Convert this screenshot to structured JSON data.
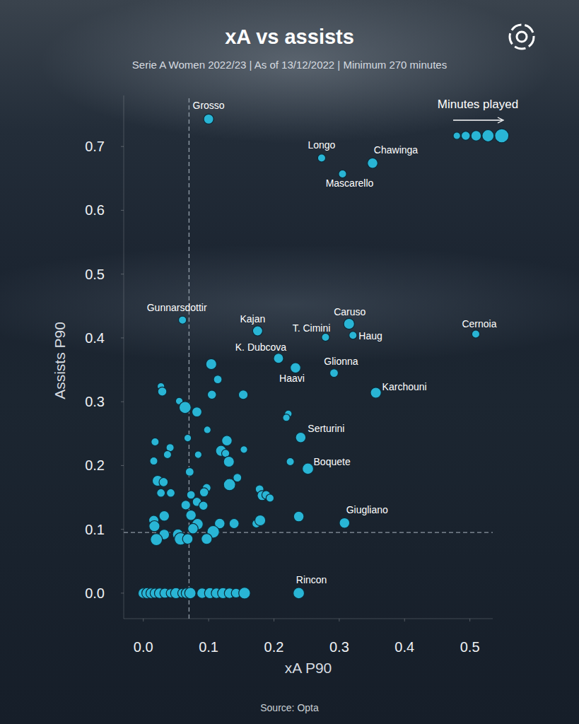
{
  "chart_data": {
    "type": "scatter",
    "title": "xA vs assists",
    "subtitle": "Serie A Women 2022/23 | As of 13/12/2022 | Minimum 270 minutes",
    "x_label": "xA P90",
    "y_label": "Assists P90",
    "source": "Source: Opta",
    "color": "#29b5d5",
    "marker": "circle",
    "grid": false,
    "xlim": [
      -0.03,
      0.535
    ],
    "ylim": [
      -0.04,
      0.78
    ],
    "xticks": [
      {
        "value": 0,
        "label": "0.0"
      },
      0.1,
      0.2,
      0.3,
      0.4,
      0.5
    ],
    "yticks": [
      {
        "value": 0,
        "label": "0.0"
      },
      0.1,
      0.2,
      0.3,
      0.4,
      0.5,
      0.6,
      0.7
    ],
    "reference_lines": {
      "x": 0.07,
      "y": 0.095
    },
    "size_label": "Minutes played",
    "size_legend": [
      300,
      450,
      600,
      800,
      1100
    ],
    "x": [
      0.1,
      0.273,
      0.351,
      0.305,
      0.06,
      0.175,
      0.315,
      0.279,
      0.321,
      0.509,
      0.207,
      0.292,
      0.233,
      0.356,
      0.241,
      0.252,
      0.308,
      0.238,
      0.104,
      0.114,
      0.027,
      0.029,
      0.055,
      0.064,
      0.082,
      0.105,
      0.153,
      0.222,
      0.219,
      0.098,
      0.018,
      0.041,
      0.068,
      0.128,
      0.154,
      0.037,
      0.084,
      0.119,
      0.126,
      0.016,
      0.131,
      0.071,
      0.225,
      0.144,
      0.132,
      0.022,
      0.031,
      0.097,
      0.093,
      0.027,
      0.042,
      0.073,
      0.178,
      0.182,
      0.188,
      0.194,
      0.082,
      0.065,
      0.092,
      0.032,
      0.073,
      0.016,
      0.117,
      0.139,
      0.173,
      0.179,
      0.238,
      0.083,
      0.017,
      0.076,
      0.107,
      0.053,
      0.032,
      0.02,
      0.057,
      0.068,
      0.097,
      0,
      0.006,
      0.012,
      0.018,
      0.025,
      0.033,
      0.042,
      0.05,
      0.06,
      0.066,
      0.072,
      0.09,
      0.102,
      0.112,
      0.122,
      0.132,
      0.142,
      0.155
    ],
    "y": [
      0.743,
      0.682,
      0.674,
      0.657,
      0.428,
      0.411,
      0.422,
      0.401,
      0.404,
      0.406,
      0.368,
      0.345,
      0.353,
      0.314,
      0.244,
      0.195,
      0.11,
      0,
      0.359,
      0.335,
      0.324,
      0.316,
      0.301,
      0.291,
      0.284,
      0.311,
      0.311,
      0.281,
      0.275,
      0.256,
      0.237,
      0.228,
      0.243,
      0.239,
      0.225,
      0.217,
      0.217,
      0.223,
      0.219,
      0.207,
      0.206,
      0.19,
      0.206,
      0.181,
      0.17,
      0.176,
      0.174,
      0.165,
      0.158,
      0.157,
      0.157,
      0.154,
      0.163,
      0.153,
      0.154,
      0.149,
      0.143,
      0.138,
      0.137,
      0.121,
      0.122,
      0.114,
      0.109,
      0.109,
      0.109,
      0.114,
      0.12,
      0.108,
      0.105,
      0.101,
      0.096,
      0.092,
      0.092,
      0.084,
      0.085,
      0.085,
      0.085,
      0,
      0,
      0,
      0,
      0,
      0,
      0,
      0,
      0,
      0,
      0,
      0,
      0,
      0,
      0,
      0,
      0,
      0
    ],
    "size": [
      550,
      350,
      600,
      350,
      350,
      550,
      650,
      350,
      350,
      350,
      550,
      400,
      600,
      650,
      600,
      700,
      600,
      700,
      650,
      400,
      300,
      450,
      300,
      800,
      550,
      450,
      500,
      300,
      300,
      300,
      350,
      350,
      300,
      600,
      300,
      350,
      300,
      650,
      350,
      350,
      650,
      400,
      350,
      400,
      800,
      650,
      450,
      400,
      450,
      400,
      400,
      400,
      400,
      550,
      400,
      350,
      450,
      500,
      450,
      600,
      600,
      550,
      600,
      550,
      400,
      650,
      600,
      700,
      650,
      600,
      850,
      650,
      600,
      800,
      850,
      600,
      650,
      600,
      650,
      600,
      550,
      600,
      550,
      450,
      650,
      500,
      600,
      700,
      600,
      650,
      600,
      650,
      600,
      500,
      750
    ],
    "labels": [
      "Grosso",
      "Longo",
      "Chawinga",
      "Mascarello",
      "Gunnarsdottir",
      "Kajan",
      "Caruso",
      "T. Cimini",
      "Haug",
      "Cernoia",
      "K. Dubcova",
      "Glionna",
      "Haavi",
      "Karchouni",
      "Serturini",
      "Boquete",
      "Giugliano",
      "Rincon",
      null,
      null,
      null,
      null,
      null,
      null,
      null,
      null,
      null,
      null,
      null,
      null,
      null,
      null,
      null,
      null,
      null,
      null,
      null,
      null,
      null,
      null,
      null,
      null,
      null,
      null,
      null,
      null,
      null,
      null,
      null,
      null,
      null,
      null,
      null,
      null,
      null,
      null,
      null,
      null,
      null,
      null,
      null,
      null,
      null,
      null,
      null,
      null,
      null,
      null,
      null,
      null,
      null,
      null,
      null,
      null,
      null,
      null,
      null,
      null,
      null,
      null,
      null,
      null,
      null,
      null,
      null,
      null,
      null,
      null,
      null,
      null,
      null,
      null,
      null,
      null,
      null
    ]
  }
}
